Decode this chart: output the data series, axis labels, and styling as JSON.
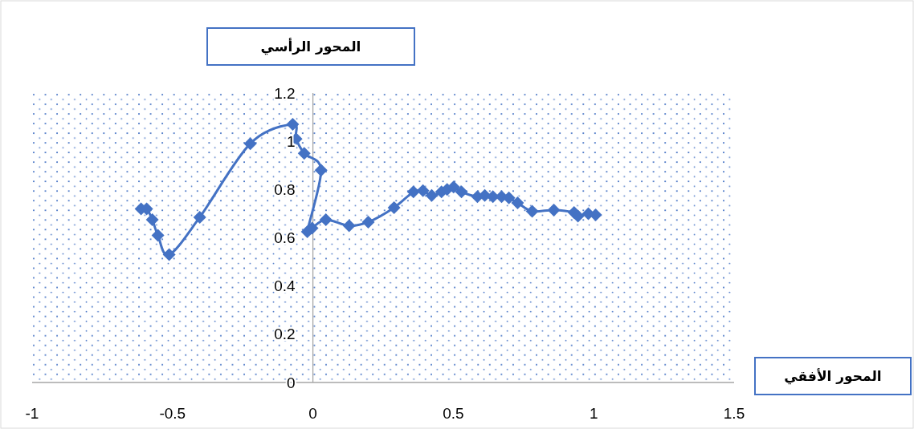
{
  "chart_data": {
    "type": "line",
    "xlabel": "المحور الأفقي",
    "ylabel": "المحور الرأسي",
    "xlim": [
      -1,
      1.5
    ],
    "ylim": [
      0,
      1.2
    ],
    "xticks": [
      -1,
      -0.5,
      0,
      0.5,
      1,
      1.5
    ],
    "yticks": [
      0,
      0.2,
      0.4,
      0.6,
      0.8,
      1,
      1.2
    ],
    "marker": "diamond",
    "line_style": "solid",
    "series": [
      {
        "color": "#4472c4",
        "x": [
          -0.612,
          -0.592,
          -0.572,
          -0.552,
          -0.512,
          -0.403,
          -0.223,
          -0.072,
          -0.06,
          -0.031,
          0.029,
          -0.02,
          -0.003,
          0.046,
          0.129,
          0.197,
          0.289,
          0.358,
          0.392,
          0.423,
          0.458,
          0.478,
          0.501,
          0.529,
          0.586,
          0.612,
          0.641,
          0.672,
          0.698,
          0.729,
          0.781,
          0.858,
          0.93,
          0.944,
          0.981,
          1.007
        ],
        "values": [
          0.72,
          0.72,
          0.675,
          0.61,
          0.53,
          0.685,
          0.99,
          1.07,
          1.01,
          0.95,
          0.88,
          0.625,
          0.64,
          0.675,
          0.65,
          0.665,
          0.725,
          0.79,
          0.795,
          0.775,
          0.79,
          0.8,
          0.81,
          0.79,
          0.77,
          0.775,
          0.77,
          0.77,
          0.765,
          0.745,
          0.71,
          0.715,
          0.705,
          0.69,
          0.7,
          0.695
        ]
      }
    ]
  }
}
